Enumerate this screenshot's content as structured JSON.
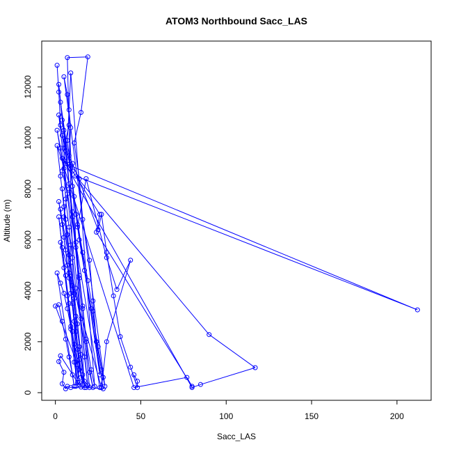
{
  "chart_data": {
    "type": "line",
    "title": "ATOM3 Northbound Sacc_LAS",
    "xlabel": "Sacc_LAS",
    "ylabel": "Altitude (m)",
    "xlim": [
      -8,
      220
    ],
    "ylim": [
      -300,
      13800
    ],
    "x_ticks": [
      0,
      50,
      100,
      150,
      200
    ],
    "y_ticks": [
      0,
      2000,
      4000,
      6000,
      8000,
      10000,
      12000
    ],
    "x_tick_labels": [
      "0",
      "50",
      "100",
      "150",
      "200"
    ],
    "y_tick_labels": [
      "0",
      "2000",
      "4000",
      "6000",
      "8000",
      "10000",
      "12000"
    ],
    "grid": false,
    "marker": "open-circle",
    "line_color": "#0000ff",
    "series": [
      {
        "values": [
          [
            1,
            12850
          ],
          [
            2,
            11800
          ],
          [
            3,
            10500
          ],
          [
            6,
            9500
          ],
          [
            4,
            8700
          ],
          [
            7,
            7800
          ],
          [
            5,
            6900
          ],
          [
            9,
            5800
          ],
          [
            8,
            4700
          ],
          [
            11,
            3700
          ],
          [
            12,
            2700
          ],
          [
            13,
            1700
          ],
          [
            14,
            900
          ],
          [
            12,
            250
          ],
          [
            7,
            13150
          ],
          [
            19,
            13180
          ],
          [
            15,
            11000
          ],
          [
            11,
            9800
          ],
          [
            14,
            8400
          ],
          [
            16,
            6800
          ],
          [
            20,
            5200
          ],
          [
            22,
            3600
          ],
          [
            24,
            2000
          ],
          [
            27,
            900
          ],
          [
            29,
            250
          ],
          [
            5,
            12400
          ],
          [
            7,
            11700
          ],
          [
            9,
            10400
          ],
          [
            8,
            9300
          ],
          [
            10,
            8100
          ],
          [
            12,
            7000
          ],
          [
            14,
            6000
          ],
          [
            17,
            4800
          ],
          [
            21,
            3300
          ],
          [
            25,
            1800
          ],
          [
            28,
            600
          ],
          [
            26,
            200
          ],
          [
            1,
            10300
          ],
          [
            3,
            9600
          ],
          [
            5,
            8800
          ],
          [
            6,
            7600
          ],
          [
            8,
            6500
          ],
          [
            10,
            5300
          ],
          [
            12,
            4100
          ],
          [
            15,
            2900
          ],
          [
            17,
            1400
          ],
          [
            19,
            300
          ],
          [
            2,
            10900
          ],
          [
            4,
            10100
          ],
          [
            6,
            9000
          ],
          [
            9,
            8900
          ],
          [
            212,
            3250
          ],
          [
            12,
            8500
          ],
          [
            90,
            2280
          ],
          [
            117,
            980
          ],
          [
            85,
            320
          ],
          [
            80,
            200
          ],
          [
            4,
            9200
          ],
          [
            10,
            8700
          ],
          [
            26,
            7000
          ],
          [
            24,
            6300
          ],
          [
            80,
            250
          ],
          [
            77,
            600
          ],
          [
            46,
            200
          ],
          [
            1,
            9700
          ],
          [
            3,
            8500
          ],
          [
            5,
            7300
          ],
          [
            7,
            6200
          ],
          [
            9,
            5100
          ],
          [
            11,
            3900
          ],
          [
            13,
            2700
          ],
          [
            15,
            1500
          ],
          [
            17,
            450
          ],
          [
            20,
            200
          ],
          [
            2,
            12100
          ],
          [
            4,
            10700
          ],
          [
            6,
            9900
          ],
          [
            8,
            8200
          ],
          [
            10,
            7100
          ],
          [
            12,
            5900
          ],
          [
            14,
            4600
          ],
          [
            16,
            3400
          ],
          [
            18,
            2100
          ],
          [
            21,
            900
          ],
          [
            23,
            250
          ],
          [
            9,
            12550
          ],
          [
            8,
            11100
          ],
          [
            7,
            9900
          ],
          [
            9,
            8800
          ],
          [
            11,
            7700
          ],
          [
            13,
            6600
          ],
          [
            16,
            5500
          ],
          [
            19,
            4400
          ],
          [
            22,
            3200
          ],
          [
            24,
            2000
          ],
          [
            26,
            700
          ],
          [
            3,
            11400
          ],
          [
            5,
            10300
          ],
          [
            7,
            9100
          ],
          [
            8,
            8000
          ],
          [
            10,
            6900
          ],
          [
            12,
            5700
          ],
          [
            14,
            4500
          ],
          [
            16,
            3300
          ],
          [
            18,
            2000
          ],
          [
            20,
            800
          ],
          [
            22,
            200
          ],
          [
            2,
            7500
          ],
          [
            4,
            6600
          ],
          [
            6,
            5600
          ],
          [
            8,
            4500
          ],
          [
            10,
            3500
          ],
          [
            12,
            2400
          ],
          [
            14,
            1300
          ],
          [
            16,
            300
          ],
          [
            3,
            7200
          ],
          [
            5,
            6100
          ],
          [
            7,
            5000
          ],
          [
            9,
            3900
          ],
          [
            11,
            2800
          ],
          [
            13,
            1700
          ],
          [
            15,
            600
          ],
          [
            18,
            200
          ],
          [
            0,
            3400
          ],
          [
            2,
            3450
          ],
          [
            4,
            2800
          ],
          [
            6,
            2100
          ],
          [
            8,
            1400
          ],
          [
            10,
            700
          ],
          [
            11,
            250
          ],
          [
            1,
            4700
          ],
          [
            3,
            4300
          ],
          [
            5,
            3900
          ],
          [
            7,
            3300
          ],
          [
            9,
            2600
          ],
          [
            11,
            1900
          ],
          [
            13,
            1100
          ],
          [
            14,
            300
          ],
          [
            3,
            1450
          ],
          [
            2,
            1220
          ],
          [
            5,
            800
          ],
          [
            4,
            350
          ],
          [
            6,
            150
          ],
          [
            7,
            250
          ],
          [
            9,
            200
          ],
          [
            15,
            220
          ],
          [
            28,
            150
          ],
          [
            13,
            6500
          ],
          [
            18,
            8400
          ],
          [
            30,
            5300
          ],
          [
            36,
            4050
          ],
          [
            44,
            5200
          ],
          [
            30,
            2000
          ],
          [
            27,
            200
          ],
          [
            3,
            5900
          ],
          [
            5,
            4900
          ],
          [
            7,
            3800
          ],
          [
            9,
            2500
          ],
          [
            11,
            1200
          ],
          [
            13,
            400
          ],
          [
            2,
            6900
          ],
          [
            4,
            5700
          ],
          [
            6,
            4600
          ],
          [
            8,
            3500
          ],
          [
            10,
            2400
          ],
          [
            12,
            1200
          ],
          [
            14,
            400
          ],
          [
            4,
            8000
          ],
          [
            6,
            6800
          ],
          [
            8,
            5400
          ],
          [
            10,
            4200
          ],
          [
            12,
            3000
          ],
          [
            14,
            1800
          ],
          [
            16,
            700
          ],
          [
            17,
            200
          ],
          [
            8,
            10500
          ],
          [
            5,
            9600
          ],
          [
            10,
            9000
          ],
          [
            25,
            6400
          ],
          [
            27,
            7000
          ],
          [
            30,
            5500
          ],
          [
            34,
            3800
          ],
          [
            38,
            2200
          ],
          [
            44,
            1000
          ],
          [
            48,
            200
          ],
          [
            48,
            450
          ],
          [
            46,
            700
          ]
        ]
      }
    ]
  }
}
